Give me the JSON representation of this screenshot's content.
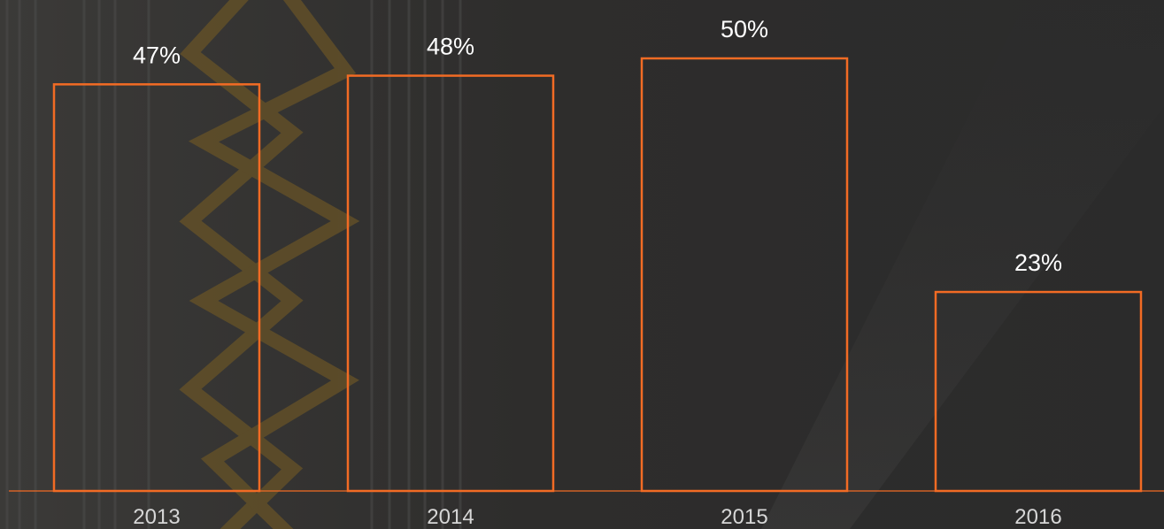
{
  "chart_data": {
    "type": "bar",
    "categories": [
      "2013",
      "2014",
      "2015",
      "2016"
    ],
    "values": [
      47,
      48,
      50,
      23
    ],
    "data_labels": [
      "47%",
      "48%",
      "50%",
      "23%"
    ],
    "ylim": [
      0,
      50
    ],
    "grid": false,
    "legend": "none",
    "title": "",
    "xlabel": "",
    "ylabel": ""
  },
  "colors": {
    "bar_stroke": "#f26b24",
    "baseline": "#f26b24",
    "label_text": "#ffffff",
    "tick_text": "#d6d6d6",
    "background": "#2a2a2a"
  }
}
